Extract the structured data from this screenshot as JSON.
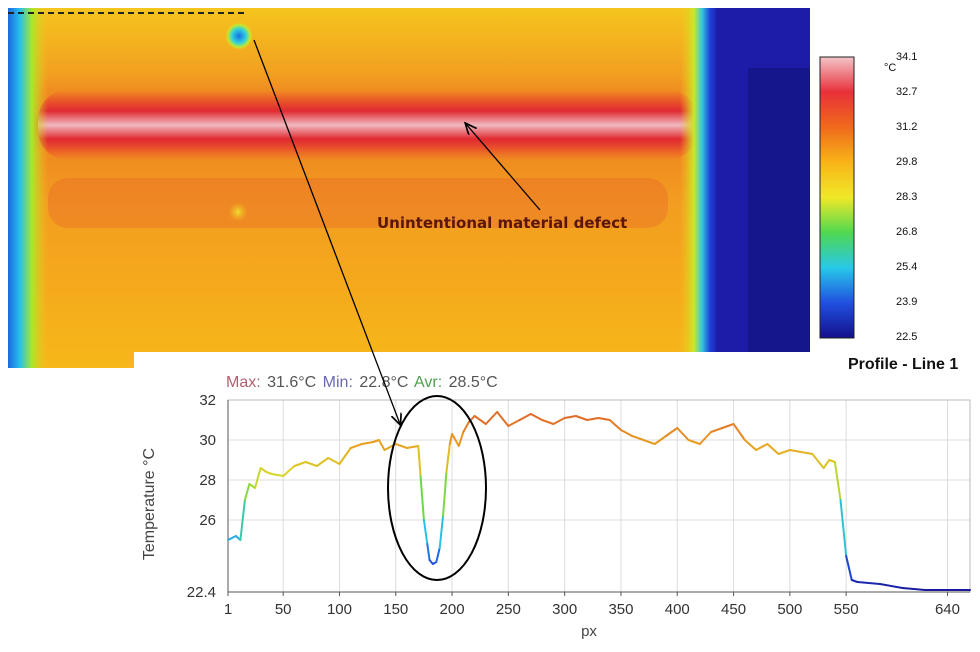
{
  "image": {
    "annotation_text": "Unintentional material defect",
    "profile_title": "Profile - Line 1"
  },
  "colorbar": {
    "unit": "°C",
    "labels": [
      "34.1",
      "32.7",
      "31.2",
      "29.8",
      "28.3",
      "26.8",
      "25.4",
      "23.9",
      "22.5"
    ],
    "colors": [
      "#f4c4c8",
      "#e8303a",
      "#f06a1c",
      "#f8b418",
      "#f0e828",
      "#50d850",
      "#28c8e8",
      "#2050e0",
      "#14108c"
    ]
  },
  "stats": {
    "max_label": "Max:",
    "max_value": "31.6°C",
    "min_label": "Min:",
    "min_value": "22.8°C",
    "avr_label": "Avr:",
    "avr_value": "28.5°C",
    "max_color": "#b06070",
    "min_color": "#6a6ab0",
    "avr_color": "#50a050"
  },
  "chart_data": {
    "type": "line",
    "xlabel": "px",
    "ylabel": "Temperature °C",
    "xlim": [
      1,
      660
    ],
    "ylim": [
      22.4,
      32
    ],
    "x_ticks": [
      1,
      50,
      100,
      150,
      200,
      250,
      300,
      350,
      400,
      450,
      500,
      550,
      640
    ],
    "y_ticks": [
      22.4,
      26,
      28,
      30,
      32
    ],
    "grid": true,
    "series": [
      {
        "x": [
          1,
          8,
          12,
          16,
          20,
          25,
          30,
          35,
          40,
          50,
          60,
          70,
          80,
          90,
          100,
          110,
          120,
          130,
          135,
          140,
          150,
          160,
          170,
          172,
          175,
          178,
          180,
          183,
          186,
          189,
          192,
          195,
          198,
          200,
          203,
          206,
          210,
          215,
          220,
          230,
          240,
          250,
          260,
          270,
          280,
          290,
          300,
          310,
          320,
          330,
          340,
          350,
          360,
          370,
          380,
          390,
          400,
          410,
          420,
          430,
          440,
          450,
          460,
          470,
          480,
          490,
          500,
          510,
          520,
          530,
          535,
          540,
          545,
          550,
          555,
          560,
          580,
          600,
          620,
          640,
          660
        ],
        "y": [
          25.0,
          25.2,
          25.0,
          27.0,
          27.8,
          27.6,
          28.6,
          28.4,
          28.3,
          28.2,
          28.7,
          28.9,
          28.7,
          29.1,
          28.8,
          29.6,
          29.8,
          29.9,
          30.0,
          29.5,
          29.8,
          29.6,
          29.7,
          28.2,
          26.0,
          24.8,
          24.0,
          23.8,
          23.9,
          24.6,
          26.2,
          28.4,
          29.8,
          30.3,
          30.0,
          29.7,
          30.4,
          30.9,
          31.2,
          30.8,
          31.4,
          30.7,
          31.0,
          31.3,
          31.0,
          30.8,
          31.1,
          31.2,
          31.0,
          31.1,
          31.0,
          30.5,
          30.2,
          30.0,
          29.8,
          30.2,
          30.6,
          30.0,
          29.8,
          30.4,
          30.6,
          30.8,
          30.0,
          29.5,
          29.8,
          29.3,
          29.5,
          29.4,
          29.3,
          28.6,
          29.0,
          28.9,
          27.0,
          24.2,
          23.0,
          22.9,
          22.8,
          22.6,
          22.5,
          22.5,
          22.5
        ]
      }
    ]
  }
}
